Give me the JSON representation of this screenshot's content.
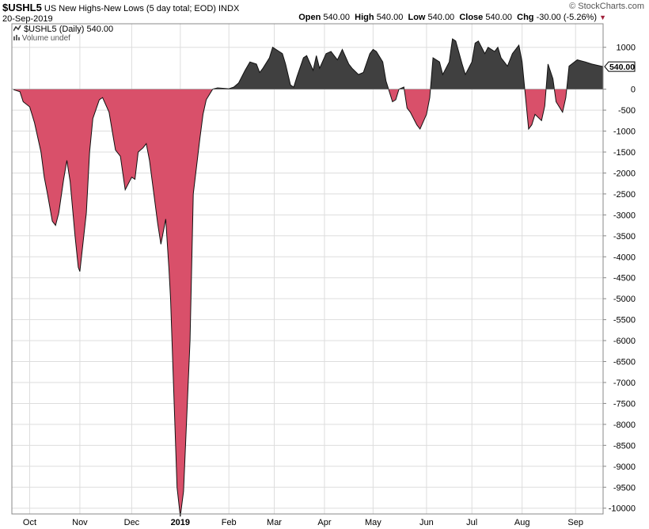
{
  "header": {
    "symbol": "$USHL5",
    "description": "US New Highs-New Lows (5 day total; EOD)",
    "exchange": "INDX",
    "date": "20-Sep-2019",
    "brand": "© StockCharts.com",
    "open_label": "Open",
    "open": "540.00",
    "high_label": "High",
    "high": "540.00",
    "low_label": "Low",
    "low": "540.00",
    "close_label": "Close",
    "close": "540.00",
    "chg_label": "Chg",
    "chg": "-30.00 (-5.26%)",
    "chg_dir_icon": "down-triangle-icon"
  },
  "legend": {
    "series_label": "$USHL5 (Daily) 540.00",
    "volume_label": "Volume undef"
  },
  "price_tag": "540.00",
  "colors": {
    "positive": "#404040",
    "negative": "#d9506a",
    "grid": "#dddddd"
  },
  "chart_data": {
    "type": "area",
    "ylim": [
      -10100,
      1250
    ],
    "yticks": [
      1000,
      0,
      -500,
      -1000,
      -1500,
      -2000,
      -2500,
      -3000,
      -3500,
      -4000,
      -4500,
      -5000,
      -5500,
      -6000,
      -6500,
      -7000,
      -7500,
      -8000,
      -8500,
      -9000,
      -9500,
      -10000
    ],
    "ytick_labels": [
      "1000",
      "0",
      "-500",
      "-1000",
      "-1500",
      "-2000",
      "-2500",
      "-3000",
      "-3500",
      "-4000",
      "-4500",
      "-5000",
      "-5500",
      "-6000",
      "-6500",
      "-7000",
      "-7500",
      "-8000",
      "-8500",
      "-9000",
      "-9500",
      "-10000"
    ],
    "xlabels": [
      {
        "label": "Oct",
        "x": "2018-10-01"
      },
      {
        "label": "Nov",
        "x": "2018-11-01"
      },
      {
        "label": "Dec",
        "x": "2018-12-03"
      },
      {
        "label": "2019",
        "x": "2019-01-02"
      },
      {
        "label": "Feb",
        "x": "2019-02-01"
      },
      {
        "label": "Mar",
        "x": "2019-03-01"
      },
      {
        "label": "Apr",
        "x": "2019-04-01"
      },
      {
        "label": "May",
        "x": "2019-05-01"
      },
      {
        "label": "Jun",
        "x": "2019-06-03"
      },
      {
        "label": "Jul",
        "x": "2019-07-01"
      },
      {
        "label": "Aug",
        "x": "2019-08-01"
      },
      {
        "label": "Sep",
        "x": "2019-09-03"
      }
    ],
    "x_start": "2018-09-21",
    "x_end": "2019-09-20",
    "points": [
      [
        "2018-09-21",
        -10
      ],
      [
        "2018-09-25",
        -60
      ],
      [
        "2018-09-27",
        -300
      ],
      [
        "2018-10-01",
        -420
      ],
      [
        "2018-10-04",
        -800
      ],
      [
        "2018-10-08",
        -1500
      ],
      [
        "2018-10-10",
        -2100
      ],
      [
        "2018-10-12",
        -2500
      ],
      [
        "2018-10-15",
        -3150
      ],
      [
        "2018-10-17",
        -3250
      ],
      [
        "2018-10-19",
        -2950
      ],
      [
        "2018-10-22",
        -2150
      ],
      [
        "2018-10-24",
        -1700
      ],
      [
        "2018-10-26",
        -2200
      ],
      [
        "2018-10-29",
        -3500
      ],
      [
        "2018-10-31",
        -4250
      ],
      [
        "2018-11-01",
        -4350
      ],
      [
        "2018-11-05",
        -2950
      ],
      [
        "2018-11-07",
        -1500
      ],
      [
        "2018-11-09",
        -700
      ],
      [
        "2018-11-13",
        -250
      ],
      [
        "2018-11-15",
        -200
      ],
      [
        "2018-11-19",
        -550
      ],
      [
        "2018-11-21",
        -1000
      ],
      [
        "2018-11-23",
        -1450
      ],
      [
        "2018-11-26",
        -1600
      ],
      [
        "2018-11-29",
        -2400
      ],
      [
        "2018-12-03",
        -2100
      ],
      [
        "2018-12-05",
        -2150
      ],
      [
        "2018-12-07",
        -1500
      ],
      [
        "2018-12-10",
        -1400
      ],
      [
        "2018-12-12",
        -1300
      ],
      [
        "2018-12-14",
        -1700
      ],
      [
        "2018-12-17",
        -2600
      ],
      [
        "2018-12-19",
        -3200
      ],
      [
        "2018-12-21",
        -3700
      ],
      [
        "2018-12-24",
        -3100
      ],
      [
        "2018-12-26",
        -4300
      ],
      [
        "2018-12-27",
        -5000
      ],
      [
        "2018-12-31",
        -9500
      ],
      [
        "2019-01-02",
        -10200
      ],
      [
        "2019-01-04",
        -9600
      ],
      [
        "2019-01-08",
        -6000
      ],
      [
        "2019-01-10",
        -2500
      ],
      [
        "2019-01-14",
        -1200
      ],
      [
        "2019-01-16",
        -600
      ],
      [
        "2019-01-18",
        -250
      ],
      [
        "2019-01-22",
        0
      ],
      [
        "2019-01-25",
        30
      ],
      [
        "2019-01-29",
        20
      ],
      [
        "2019-02-01",
        10
      ],
      [
        "2019-02-04",
        50
      ],
      [
        "2019-02-07",
        150
      ],
      [
        "2019-02-11",
        450
      ],
      [
        "2019-02-14",
        650
      ],
      [
        "2019-02-18",
        600
      ],
      [
        "2019-02-20",
        400
      ],
      [
        "2019-02-22",
        500
      ],
      [
        "2019-02-26",
        750
      ],
      [
        "2019-02-28",
        1000
      ],
      [
        "2019-03-04",
        900
      ],
      [
        "2019-03-06",
        850
      ],
      [
        "2019-03-08",
        600
      ],
      [
        "2019-03-11",
        100
      ],
      [
        "2019-03-13",
        50
      ],
      [
        "2019-03-15",
        300
      ],
      [
        "2019-03-19",
        750
      ],
      [
        "2019-03-21",
        800
      ],
      [
        "2019-03-25",
        450
      ],
      [
        "2019-03-27",
        800
      ],
      [
        "2019-03-29",
        500
      ],
      [
        "2019-04-02",
        850
      ],
      [
        "2019-04-05",
        900
      ],
      [
        "2019-04-09",
        700
      ],
      [
        "2019-04-12",
        950
      ],
      [
        "2019-04-16",
        600
      ],
      [
        "2019-04-18",
        500
      ],
      [
        "2019-04-22",
        350
      ],
      [
        "2019-04-25",
        400
      ],
      [
        "2019-04-29",
        850
      ],
      [
        "2019-05-01",
        950
      ],
      [
        "2019-05-03",
        900
      ],
      [
        "2019-05-07",
        650
      ],
      [
        "2019-05-09",
        200
      ],
      [
        "2019-05-13",
        -300
      ],
      [
        "2019-05-15",
        -250
      ],
      [
        "2019-05-17",
        0
      ],
      [
        "2019-05-20",
        50
      ],
      [
        "2019-05-22",
        -450
      ],
      [
        "2019-05-24",
        -550
      ],
      [
        "2019-05-28",
        -850
      ],
      [
        "2019-05-30",
        -950
      ],
      [
        "2019-06-03",
        -600
      ],
      [
        "2019-06-05",
        -200
      ],
      [
        "2019-06-07",
        750
      ],
      [
        "2019-06-11",
        650
      ],
      [
        "2019-06-13",
        350
      ],
      [
        "2019-06-17",
        650
      ],
      [
        "2019-06-19",
        1200
      ],
      [
        "2019-06-21",
        1150
      ],
      [
        "2019-06-25",
        600
      ],
      [
        "2019-06-27",
        350
      ],
      [
        "2019-07-01",
        650
      ],
      [
        "2019-07-03",
        1100
      ],
      [
        "2019-07-05",
        1150
      ],
      [
        "2019-07-09",
        850
      ],
      [
        "2019-07-11",
        1000
      ],
      [
        "2019-07-15",
        900
      ],
      [
        "2019-07-17",
        1000
      ],
      [
        "2019-07-19",
        750
      ],
      [
        "2019-07-23",
        550
      ],
      [
        "2019-07-26",
        850
      ],
      [
        "2019-07-30",
        1050
      ],
      [
        "2019-08-01",
        650
      ],
      [
        "2019-08-05",
        -950
      ],
      [
        "2019-08-07",
        -850
      ],
      [
        "2019-08-09",
        -600
      ],
      [
        "2019-08-13",
        -750
      ],
      [
        "2019-08-15",
        -400
      ],
      [
        "2019-08-17",
        600
      ],
      [
        "2019-08-20",
        250
      ],
      [
        "2019-08-22",
        -300
      ],
      [
        "2019-08-26",
        -550
      ],
      [
        "2019-08-28",
        -200
      ],
      [
        "2019-08-30",
        550
      ],
      [
        "2019-09-04",
        700
      ],
      [
        "2019-09-09",
        650
      ],
      [
        "2019-09-13",
        600
      ],
      [
        "2019-09-20",
        540
      ]
    ]
  }
}
